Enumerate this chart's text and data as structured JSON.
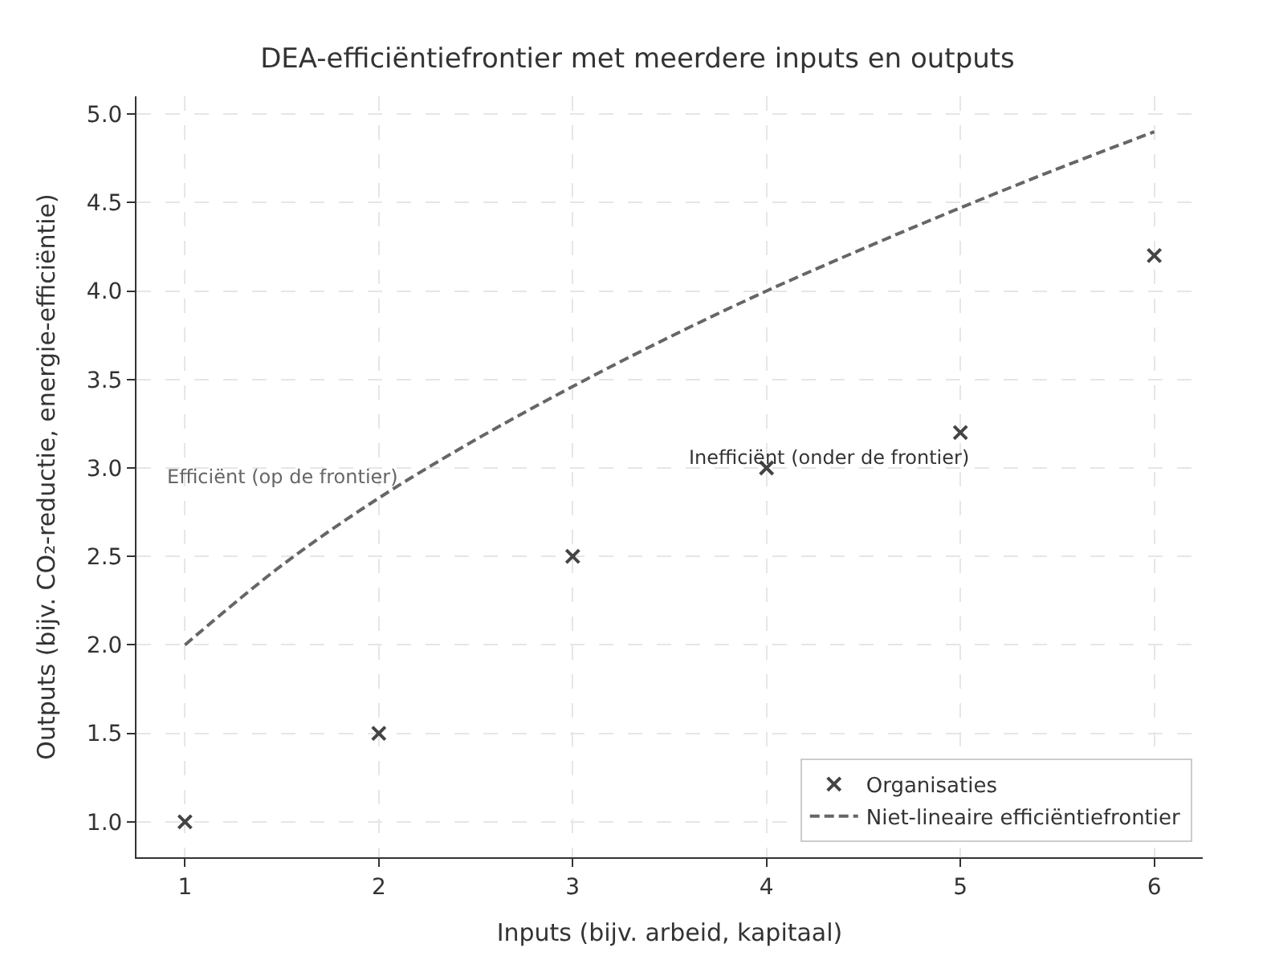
{
  "chart_data": {
    "type": "scatter",
    "title": "DEA-efficiëntiefrontier met meerdere inputs en outputs",
    "xlabel": "Inputs (bijv. arbeid, kapitaal)",
    "ylabel": "Outputs (bijv. CO₂-reductie, energie-efficiëntie)",
    "x": [
      1,
      2,
      3,
      4,
      5,
      6
    ],
    "series": [
      {
        "name": "Organisaties",
        "color": "#444444",
        "marker": "cross",
        "values": [
          1.0,
          1.5,
          2.5,
          3.0,
          3.2,
          4.2
        ]
      },
      {
        "name": "Niet-lineaire efficiëntiefrontier",
        "type": "line",
        "color": "#666666",
        "line_style": "dashed",
        "marker": "none",
        "x": [
          1,
          1.5,
          2,
          2.5,
          3,
          3.5,
          4,
          4.5,
          5,
          5.5,
          6
        ],
        "values": [
          2.0,
          2.45,
          2.83,
          3.16,
          3.46,
          3.74,
          4.0,
          4.24,
          4.47,
          4.69,
          4.9
        ]
      }
    ],
    "annotations": [
      "Efficiënt (op de frontier)",
      "Inefficiënt (onder de frontier)"
    ],
    "xlim": [
      0.75,
      6.25
    ],
    "ylim": [
      0.8,
      5.1
    ],
    "xticks": [
      1,
      2,
      3,
      4,
      5,
      6
    ],
    "yticks": [
      {
        "value": 1,
        "label": "1.0"
      },
      {
        "value": 1.5,
        "label": "1.5"
      },
      {
        "value": 2,
        "label": "2.0"
      },
      {
        "value": 2.5,
        "label": "2.5"
      },
      {
        "value": 3,
        "label": "3.0"
      },
      {
        "value": 3.5,
        "label": "3.5"
      },
      {
        "value": 4,
        "label": "4.0"
      },
      {
        "value": 4.5,
        "label": "4.5"
      },
      {
        "value": 5,
        "label": "5.0"
      }
    ],
    "grid": true,
    "legend": "bottom right"
  }
}
